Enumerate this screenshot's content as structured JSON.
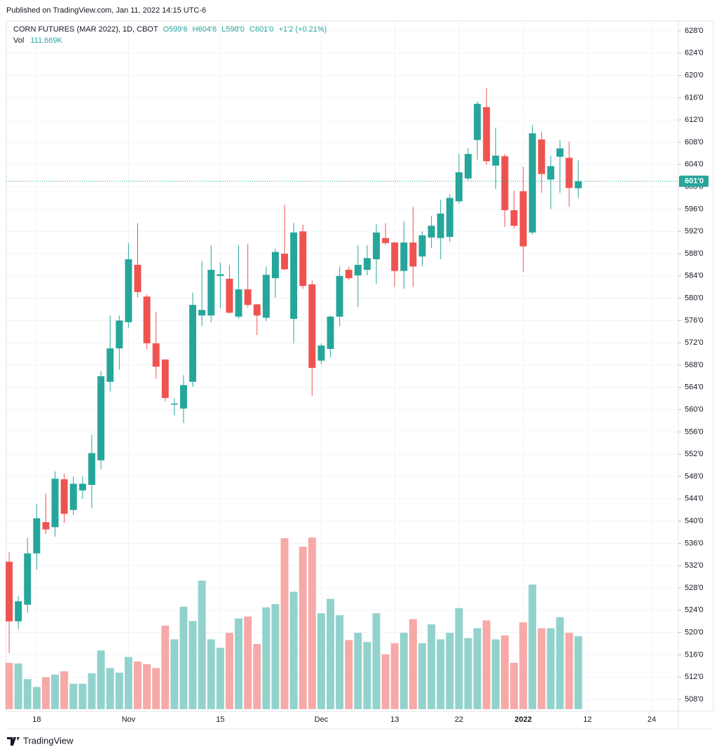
{
  "header": "Published on TradingView.com, Jan 11, 2022 14:15 UTC-6",
  "footer": "TradingView",
  "chart_data": {
    "type": "candlestick",
    "title": "CORN FUTURES (MAR 2022), 1D, CBOT",
    "legend": {
      "open": "O599'6",
      "high": "H604'6",
      "low": "L598'0",
      "close": "C601'0",
      "change": "+1'2 (+0.21%)"
    },
    "volume_title": "Vol",
    "volume_value_label": "111.669K",
    "up_color": "#26a69a",
    "down_color": "#ef5350",
    "volume_up_color": "#92d2cc",
    "volume_down_color": "#f7a9a7",
    "open": [
      532.7,
      522,
      525,
      534.2,
      539.8,
      538.9,
      547.5,
      542,
      545.5,
      546.5,
      550.9,
      565,
      571,
      575.7,
      586,
      580.3,
      571.9,
      569,
      560.9,
      560.2,
      565,
      576.9,
      576.9,
      584,
      583.5,
      576.7,
      581.6,
      578.9,
      576.5,
      583.6,
      588,
      576.3,
      592,
      582.5,
      568.8,
      570.9,
      576.7,
      585.1,
      584.1,
      585.1,
      587,
      590.8,
      590,
      584.9,
      590,
      587.5,
      590.9,
      590.8,
      591,
      597.4,
      601.5,
      608.4,
      614.3,
      603.8,
      605.5,
      595.8,
      599.2,
      591.8,
      608.5,
      601.3,
      605.4,
      605.2,
      599.75
    ],
    "high": [
      534.4,
      526.6,
      537,
      543,
      544.9,
      548.9,
      548.5,
      548,
      548,
      555.5,
      566.9,
      576.9,
      576.9,
      589.9,
      593.5,
      580.7,
      577.6,
      569,
      562,
      566.2,
      581,
      586.7,
      589.5,
      586.4,
      586,
      589.5,
      589.8,
      579,
      585.7,
      588.9,
      596.8,
      593.5,
      593.2,
      583.2,
      571.9,
      576.9,
      585.7,
      585.7,
      589.5,
      589.5,
      593.3,
      593.5,
      590.1,
      593.8,
      596.4,
      592,
      594.8,
      597.7,
      598.7,
      605.9,
      606.9,
      615.3,
      617.7,
      610.6,
      605.9,
      599.3,
      603.6,
      611.1,
      609.9,
      605.6,
      608.4,
      608.1,
      604.75
    ],
    "low": [
      516.3,
      520.6,
      523.5,
      531.3,
      537.7,
      537.2,
      539.7,
      541.1,
      544,
      542.3,
      549.3,
      563.3,
      567.2,
      574.7,
      580.1,
      570.9,
      565.5,
      561.5,
      559,
      557.6,
      564.1,
      575,
      575.7,
      578.2,
      577.2,
      576.3,
      578.4,
      573.4,
      575.9,
      580.1,
      585,
      571.9,
      581.7,
      562.5,
      568.1,
      569.4,
      575,
      583.2,
      578.4,
      584.1,
      582.5,
      589.5,
      582,
      581.7,
      582,
      585.7,
      589,
      587,
      590.1,
      597,
      601.1,
      604.9,
      604,
      599.6,
      592.8,
      592.5,
      584.7,
      591.4,
      598.9,
      596,
      598.9,
      596.4,
      598
    ],
    "close": [
      522,
      525.6,
      534.2,
      540.5,
      538.5,
      547.6,
      541.3,
      546.7,
      546.7,
      552.2,
      566,
      571,
      576,
      587,
      581.1,
      571.9,
      567.7,
      562.1,
      561.1,
      564.4,
      578.8,
      577.9,
      585.1,
      584.3,
      577.4,
      581.6,
      578.8,
      576.9,
      584.2,
      588.3,
      585.2,
      591.8,
      582.2,
      567.5,
      571.5,
      576.7,
      584,
      583.6,
      586,
      587.2,
      591.8,
      589.9,
      584.9,
      590,
      585.7,
      591.3,
      593,
      595.2,
      598,
      602.6,
      605.9,
      614.9,
      604.6,
      605.6,
      595.8,
      593,
      589.3,
      609.6,
      602.3,
      603.7,
      606.9,
      599.8,
      601
    ],
    "volume": [
      70.9,
      70,
      46,
      34,
      49,
      53,
      58,
      39,
      39,
      55,
      90,
      63,
      56,
      80,
      73,
      69,
      63,
      128,
      107,
      157,
      135,
      197,
      107,
      94,
      117,
      139,
      142,
      100,
      156,
      161,
      262,
      180,
      249,
      263,
      147,
      169,
      144,
      106,
      117,
      103,
      147,
      84,
      101,
      117,
      138,
      101,
      130,
      107,
      117,
      155,
      109,
      124,
      136,
      107,
      113,
      71,
      133,
      191,
      124,
      124,
      141,
      117,
      111.669
    ],
    "last_price": {
      "value": 601,
      "label": "601'0"
    },
    "xlim": [
      -0.31,
      72.9
    ],
    "xticks": [
      {
        "value": 3,
        "label": "18"
      },
      {
        "value": 13,
        "label": "Nov"
      },
      {
        "value": 23,
        "label": "15"
      },
      {
        "value": 34,
        "label": "Dec"
      },
      {
        "value": 42,
        "label": "13"
      },
      {
        "value": 49,
        "label": "22"
      },
      {
        "value": 56,
        "label": "2022"
      },
      {
        "value": 63,
        "label": "12"
      },
      {
        "value": 70,
        "label": "24"
      }
    ],
    "ylim": [
      506.24,
      629.76
    ],
    "yticks": [
      {
        "value": 508,
        "label": "508'0"
      },
      {
        "value": 512,
        "label": "512'0"
      },
      {
        "value": 516,
        "label": "516'0"
      },
      {
        "value": 520,
        "label": "520'0"
      },
      {
        "value": 524,
        "label": "524'0"
      },
      {
        "value": 528,
        "label": "528'0"
      },
      {
        "value": 532,
        "label": "532'0"
      },
      {
        "value": 536,
        "label": "536'0"
      },
      {
        "value": 540,
        "label": "540'0"
      },
      {
        "value": 544,
        "label": "544'0"
      },
      {
        "value": 548,
        "label": "548'0"
      },
      {
        "value": 552,
        "label": "552'0"
      },
      {
        "value": 556,
        "label": "556'0"
      },
      {
        "value": 560,
        "label": "560'0"
      },
      {
        "value": 564,
        "label": "564'0"
      },
      {
        "value": 568,
        "label": "568'0"
      },
      {
        "value": 572,
        "label": "572'0"
      },
      {
        "value": 576,
        "label": "576'0"
      },
      {
        "value": 580,
        "label": "580'0"
      },
      {
        "value": 584,
        "label": "584'0"
      },
      {
        "value": 588,
        "label": "588'0"
      },
      {
        "value": 592,
        "label": "592'0"
      },
      {
        "value": 596,
        "label": "596'0"
      },
      {
        "value": 600,
        "label": "600'0"
      },
      {
        "value": 604,
        "label": "604'0"
      },
      {
        "value": 608,
        "label": "608'0"
      },
      {
        "value": 612,
        "label": "612'0"
      },
      {
        "value": 616,
        "label": "616'0"
      },
      {
        "value": 620,
        "label": "620'0"
      },
      {
        "value": 624,
        "label": "624'0"
      },
      {
        "value": 628,
        "label": "628'0"
      }
    ],
    "grid": true
  }
}
